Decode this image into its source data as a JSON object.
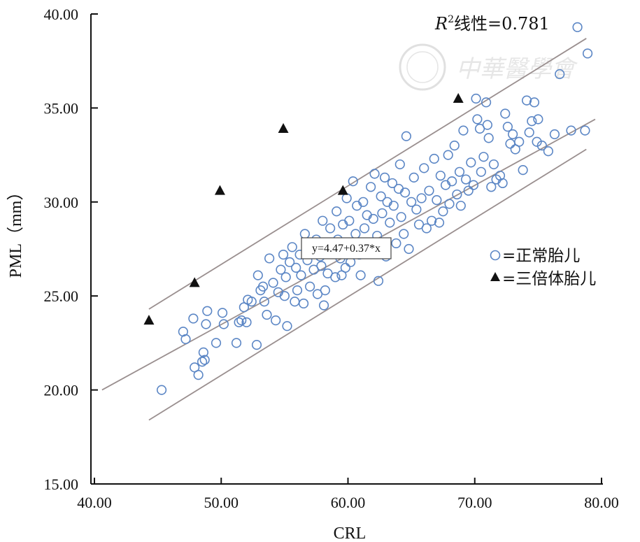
{
  "chart_data": {
    "type": "scatter",
    "xlabel": "CRL",
    "ylabel": "PML（mm）",
    "xlim": [
      40,
      80
    ],
    "ylim": [
      15,
      40
    ],
    "x_ticks": [
      "40.00",
      "50.00",
      "60.00",
      "70.00",
      "80.00"
    ],
    "y_ticks": [
      "15.00",
      "20.00",
      "25.00",
      "30.00",
      "35.00",
      "40.00"
    ],
    "grid": false,
    "legend_position": "right",
    "annotations": {
      "r2_prefix": "R",
      "r2_sup": "2",
      "r2_rest": "线性=0.781",
      "equation": "y=4.47+0.37*x"
    },
    "lines": {
      "fit": {
        "x": [
          40.6,
          79.5
        ],
        "y": [
          20.0,
          34.4
        ]
      },
      "upper": {
        "x": [
          44.3,
          78.8
        ],
        "y": [
          24.3,
          38.7
        ]
      },
      "lower": {
        "x": [
          44.3,
          78.8
        ],
        "y": [
          18.4,
          32.8
        ]
      }
    },
    "series": [
      {
        "name": "=正常胎儿",
        "marker": "circle",
        "color": "#5b86c5",
        "points": [
          [
            45.3,
            20.0
          ],
          [
            47.0,
            23.1
          ],
          [
            47.2,
            22.7
          ],
          [
            47.8,
            23.8
          ],
          [
            47.9,
            21.2
          ],
          [
            48.2,
            20.8
          ],
          [
            48.5,
            21.5
          ],
          [
            48.7,
            21.6
          ],
          [
            48.6,
            22.0
          ],
          [
            48.8,
            23.5
          ],
          [
            48.9,
            24.2
          ],
          [
            49.6,
            22.5
          ],
          [
            50.1,
            24.1
          ],
          [
            50.2,
            23.5
          ],
          [
            51.2,
            22.5
          ],
          [
            51.4,
            23.6
          ],
          [
            51.6,
            23.7
          ],
          [
            51.8,
            24.4
          ],
          [
            52.0,
            23.6
          ],
          [
            52.1,
            24.8
          ],
          [
            52.4,
            24.7
          ],
          [
            52.8,
            22.4
          ],
          [
            52.9,
            26.1
          ],
          [
            53.1,
            25.3
          ],
          [
            53.3,
            25.5
          ],
          [
            53.4,
            24.7
          ],
          [
            53.6,
            24.0
          ],
          [
            53.8,
            27.0
          ],
          [
            54.1,
            25.7
          ],
          [
            54.3,
            23.7
          ],
          [
            54.5,
            25.2
          ],
          [
            54.7,
            26.4
          ],
          [
            54.9,
            27.2
          ],
          [
            55.0,
            25.0
          ],
          [
            55.1,
            26.0
          ],
          [
            55.2,
            23.4
          ],
          [
            55.4,
            26.8
          ],
          [
            55.6,
            27.6
          ],
          [
            55.8,
            24.7
          ],
          [
            55.9,
            26.5
          ],
          [
            56.0,
            25.3
          ],
          [
            56.2,
            27.2
          ],
          [
            56.3,
            26.1
          ],
          [
            56.5,
            24.6
          ],
          [
            56.6,
            28.3
          ],
          [
            56.8,
            26.9
          ],
          [
            57.0,
            25.5
          ],
          [
            57.1,
            27.5
          ],
          [
            57.3,
            26.4
          ],
          [
            57.5,
            28.0
          ],
          [
            57.6,
            25.1
          ],
          [
            57.8,
            27.1
          ],
          [
            57.9,
            26.6
          ],
          [
            58.0,
            29.0
          ],
          [
            58.1,
            24.5
          ],
          [
            58.2,
            25.3
          ],
          [
            58.3,
            27.6
          ],
          [
            58.4,
            26.2
          ],
          [
            58.6,
            28.6
          ],
          [
            58.8,
            27.3
          ],
          [
            59.0,
            26.0
          ],
          [
            59.1,
            29.5
          ],
          [
            59.2,
            28.0
          ],
          [
            59.4,
            27.0
          ],
          [
            59.5,
            26.1
          ],
          [
            59.6,
            28.8
          ],
          [
            59.8,
            26.5
          ],
          [
            59.9,
            30.2
          ],
          [
            60.0,
            27.6
          ],
          [
            60.1,
            29.0
          ],
          [
            60.2,
            26.8
          ],
          [
            60.4,
            31.1
          ],
          [
            60.6,
            28.3
          ],
          [
            60.7,
            29.8
          ],
          [
            60.9,
            27.2
          ],
          [
            61.0,
            26.1
          ],
          [
            61.2,
            30.0
          ],
          [
            61.3,
            28.6
          ],
          [
            61.5,
            29.3
          ],
          [
            61.6,
            27.7
          ],
          [
            61.8,
            30.8
          ],
          [
            62.0,
            29.1
          ],
          [
            62.1,
            31.5
          ],
          [
            62.3,
            28.2
          ],
          [
            62.4,
            25.8
          ],
          [
            62.6,
            30.3
          ],
          [
            62.7,
            29.4
          ],
          [
            62.9,
            31.3
          ],
          [
            63.0,
            27.1
          ],
          [
            63.1,
            30.0
          ],
          [
            63.3,
            28.9
          ],
          [
            63.5,
            31.0
          ],
          [
            63.6,
            29.8
          ],
          [
            63.8,
            27.8
          ],
          [
            64.0,
            30.7
          ],
          [
            64.1,
            32.0
          ],
          [
            64.2,
            29.2
          ],
          [
            64.4,
            28.3
          ],
          [
            64.5,
            30.5
          ],
          [
            64.6,
            33.5
          ],
          [
            64.8,
            27.5
          ],
          [
            65.0,
            30.0
          ],
          [
            65.2,
            31.3
          ],
          [
            65.4,
            29.6
          ],
          [
            65.6,
            28.8
          ],
          [
            65.8,
            30.2
          ],
          [
            66.0,
            31.8
          ],
          [
            66.2,
            28.6
          ],
          [
            66.4,
            30.6
          ],
          [
            66.6,
            29.0
          ],
          [
            66.8,
            32.3
          ],
          [
            67.0,
            30.1
          ],
          [
            67.2,
            28.9
          ],
          [
            67.3,
            31.4
          ],
          [
            67.5,
            29.5
          ],
          [
            67.7,
            30.9
          ],
          [
            67.9,
            32.5
          ],
          [
            68.0,
            29.9
          ],
          [
            68.2,
            31.1
          ],
          [
            68.4,
            33.0
          ],
          [
            68.6,
            30.4
          ],
          [
            68.8,
            31.6
          ],
          [
            68.9,
            29.8
          ],
          [
            69.1,
            33.8
          ],
          [
            69.3,
            31.2
          ],
          [
            69.5,
            30.6
          ],
          [
            69.7,
            32.1
          ],
          [
            69.9,
            30.9
          ],
          [
            70.1,
            35.5
          ],
          [
            70.2,
            34.4
          ],
          [
            70.4,
            33.9
          ],
          [
            70.5,
            31.6
          ],
          [
            70.7,
            32.4
          ],
          [
            70.9,
            35.3
          ],
          [
            71.0,
            34.1
          ],
          [
            71.1,
            33.4
          ],
          [
            71.3,
            30.8
          ],
          [
            71.5,
            32.0
          ],
          [
            71.7,
            31.2
          ],
          [
            72.0,
            31.4
          ],
          [
            72.2,
            31.0
          ],
          [
            72.4,
            34.7
          ],
          [
            72.6,
            34.0
          ],
          [
            72.8,
            33.1
          ],
          [
            73.0,
            33.6
          ],
          [
            73.2,
            32.8
          ],
          [
            73.5,
            33.2
          ],
          [
            73.8,
            31.7
          ],
          [
            74.1,
            35.4
          ],
          [
            74.3,
            33.7
          ],
          [
            74.5,
            34.3
          ],
          [
            74.7,
            35.3
          ],
          [
            74.9,
            33.2
          ],
          [
            75.0,
            34.4
          ],
          [
            75.3,
            33.0
          ],
          [
            75.8,
            32.7
          ],
          [
            76.3,
            33.6
          ],
          [
            76.7,
            36.8
          ],
          [
            77.6,
            33.8
          ],
          [
            78.1,
            39.3
          ],
          [
            78.7,
            33.8
          ],
          [
            78.9,
            37.9
          ]
        ]
      },
      {
        "name": "=三倍体胎儿",
        "marker": "triangle",
        "color": "#111111",
        "points": [
          [
            44.3,
            23.7
          ],
          [
            47.9,
            25.7
          ],
          [
            49.9,
            30.6
          ],
          [
            54.9,
            33.9
          ],
          [
            59.6,
            30.6
          ],
          [
            68.7,
            35.5
          ]
        ]
      }
    ]
  }
}
